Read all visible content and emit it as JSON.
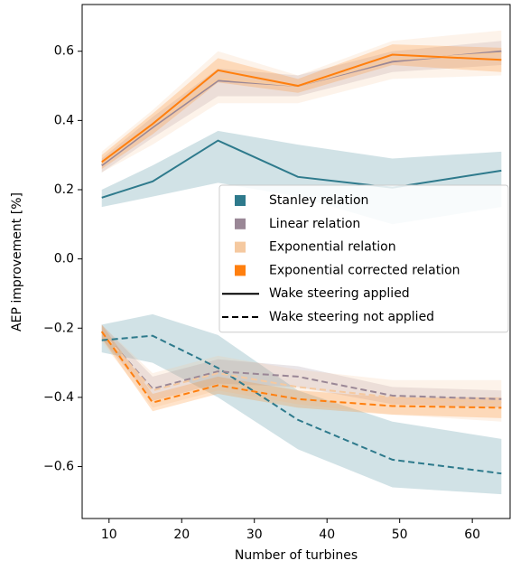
{
  "chart_data": {
    "type": "line",
    "xlabel": "Number of turbines",
    "ylabel": "AEP improvement [%]",
    "x": [
      9,
      16,
      25,
      36,
      49,
      64
    ],
    "xlim": [
      6.3,
      65.2
    ],
    "xticks": [
      10,
      20,
      30,
      40,
      50,
      60
    ],
    "ylim": [
      -0.75,
      0.735
    ],
    "yticks": [
      {
        "value": -0.6,
        "label": "−0.6"
      },
      {
        "value": -0.4,
        "label": "−0.4"
      },
      {
        "value": -0.2,
        "label": "−0.2"
      },
      {
        "value": 0,
        "label": "0.0"
      },
      0.2,
      0.4,
      0.6
    ],
    "legend": "center-right",
    "series": [
      {
        "name": "Stanley relation",
        "color": "#2e7a8c",
        "applied": {
          "values": [
            0.177,
            0.224,
            0.342,
            0.237,
            0.206,
            0.255
          ],
          "lower": [
            0.15,
            0.18,
            0.22,
            0.18,
            0.1,
            0.15
          ],
          "upper": [
            0.2,
            0.27,
            0.37,
            0.33,
            0.29,
            0.31
          ]
        },
        "not_applied": {
          "values": [
            -0.235,
            -0.222,
            -0.315,
            -0.465,
            -0.58,
            -0.62
          ],
          "lower": [
            -0.27,
            -0.3,
            -0.4,
            -0.55,
            -0.66,
            -0.68
          ],
          "upper": [
            -0.19,
            -0.16,
            -0.22,
            -0.38,
            -0.47,
            -0.52
          ]
        }
      },
      {
        "name": "Linear relation",
        "color": "#9a8796",
        "applied": {
          "values": [
            0.27,
            0.38,
            0.515,
            0.5,
            0.57,
            0.6
          ],
          "lower": [
            0.25,
            0.35,
            0.47,
            0.47,
            0.54,
            0.56
          ],
          "upper": [
            0.29,
            0.41,
            0.55,
            0.53,
            0.6,
            0.63
          ]
        },
        "not_applied": {
          "values": [
            -0.21,
            -0.375,
            -0.325,
            -0.34,
            -0.395,
            -0.405
          ],
          "lower": [
            -0.23,
            -0.41,
            -0.36,
            -0.37,
            -0.42,
            -0.43
          ],
          "upper": [
            -0.19,
            -0.34,
            -0.29,
            -0.31,
            -0.37,
            -0.38
          ]
        }
      },
      {
        "name": "Exponential relation",
        "color": "#f5c9a0",
        "applied": {
          "values": [
            0.275,
            0.385,
            0.52,
            0.5,
            0.575,
            0.595
          ],
          "lower": [
            0.25,
            0.33,
            0.45,
            0.45,
            0.52,
            0.53
          ],
          "upper": [
            0.31,
            0.43,
            0.6,
            0.53,
            0.63,
            0.66
          ]
        },
        "not_applied": {
          "values": [
            -0.21,
            -0.38,
            -0.33,
            -0.37,
            -0.4,
            -0.415
          ],
          "lower": [
            -0.24,
            -0.43,
            -0.38,
            -0.42,
            -0.45,
            -0.47
          ],
          "upper": [
            -0.19,
            -0.33,
            -0.28,
            -0.32,
            -0.35,
            -0.35
          ]
        }
      },
      {
        "name": "Exponential corrected relation",
        "color": "#ff7f0e",
        "applied": {
          "values": [
            0.28,
            0.39,
            0.545,
            0.5,
            0.59,
            0.575
          ],
          "lower": [
            0.26,
            0.36,
            0.51,
            0.48,
            0.56,
            0.54
          ],
          "upper": [
            0.3,
            0.42,
            0.58,
            0.52,
            0.62,
            0.61
          ]
        },
        "not_applied": {
          "values": [
            -0.21,
            -0.415,
            -0.365,
            -0.405,
            -0.425,
            -0.43
          ],
          "lower": [
            -0.23,
            -0.44,
            -0.39,
            -0.43,
            -0.45,
            -0.46
          ],
          "upper": [
            -0.19,
            -0.39,
            -0.34,
            -0.38,
            -0.4,
            -0.4
          ]
        }
      }
    ],
    "line_styles": [
      {
        "name": "Wake steering applied",
        "dash": "solid"
      },
      {
        "name": "Wake steering not applied",
        "dash": "dashed"
      }
    ]
  }
}
